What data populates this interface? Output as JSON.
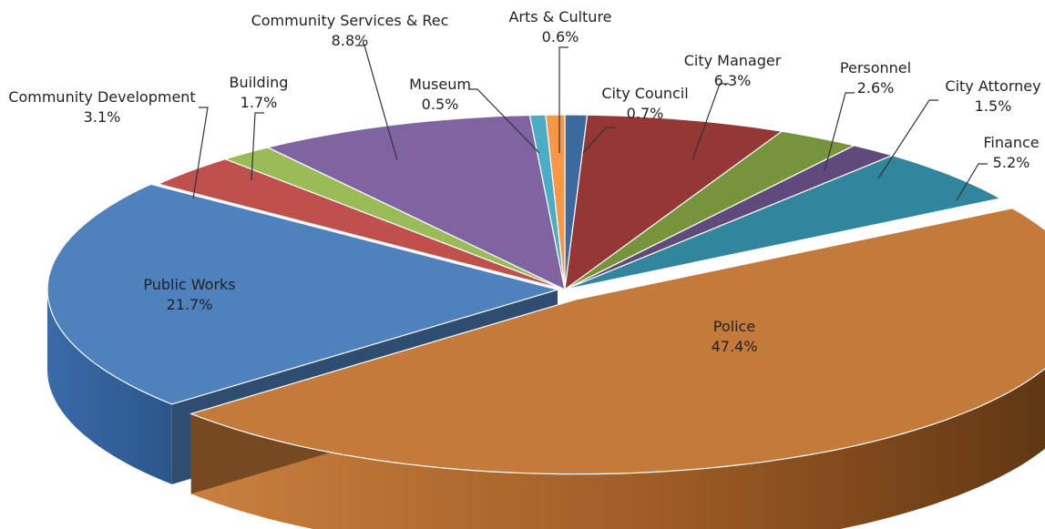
{
  "chart_data": {
    "type": "pie",
    "style": "3d-exploded",
    "title": "",
    "legend": "none",
    "data_labels": "outside-with-leader-lines",
    "categories": [
      "City Council",
      "City Manager",
      "Personnel",
      "City Attorney",
      "Finance",
      "Police",
      "Public Works",
      "Community Development",
      "Building",
      "Community Services & Rec",
      "Museum",
      "Arts & Culture"
    ],
    "values": [
      0.7,
      6.3,
      2.6,
      1.5,
      5.2,
      47.4,
      21.7,
      3.1,
      1.7,
      8.8,
      0.5,
      0.6
    ],
    "value_labels": [
      "0.7%",
      "6.3%",
      "2.6%",
      "1.5%",
      "5.2%",
      "47.4%",
      "21.7%",
      "3.1%",
      "1.7%",
      "8.8%",
      "0.5%",
      "0.6%"
    ],
    "colors": [
      "#3d6a9e",
      "#953735",
      "#77933c",
      "#604a7b",
      "#31859c",
      "#c47a3a",
      "#4f81bd",
      "#c0504d",
      "#9bbb59",
      "#8064a2",
      "#4bacc6",
      "#f79646"
    ]
  }
}
